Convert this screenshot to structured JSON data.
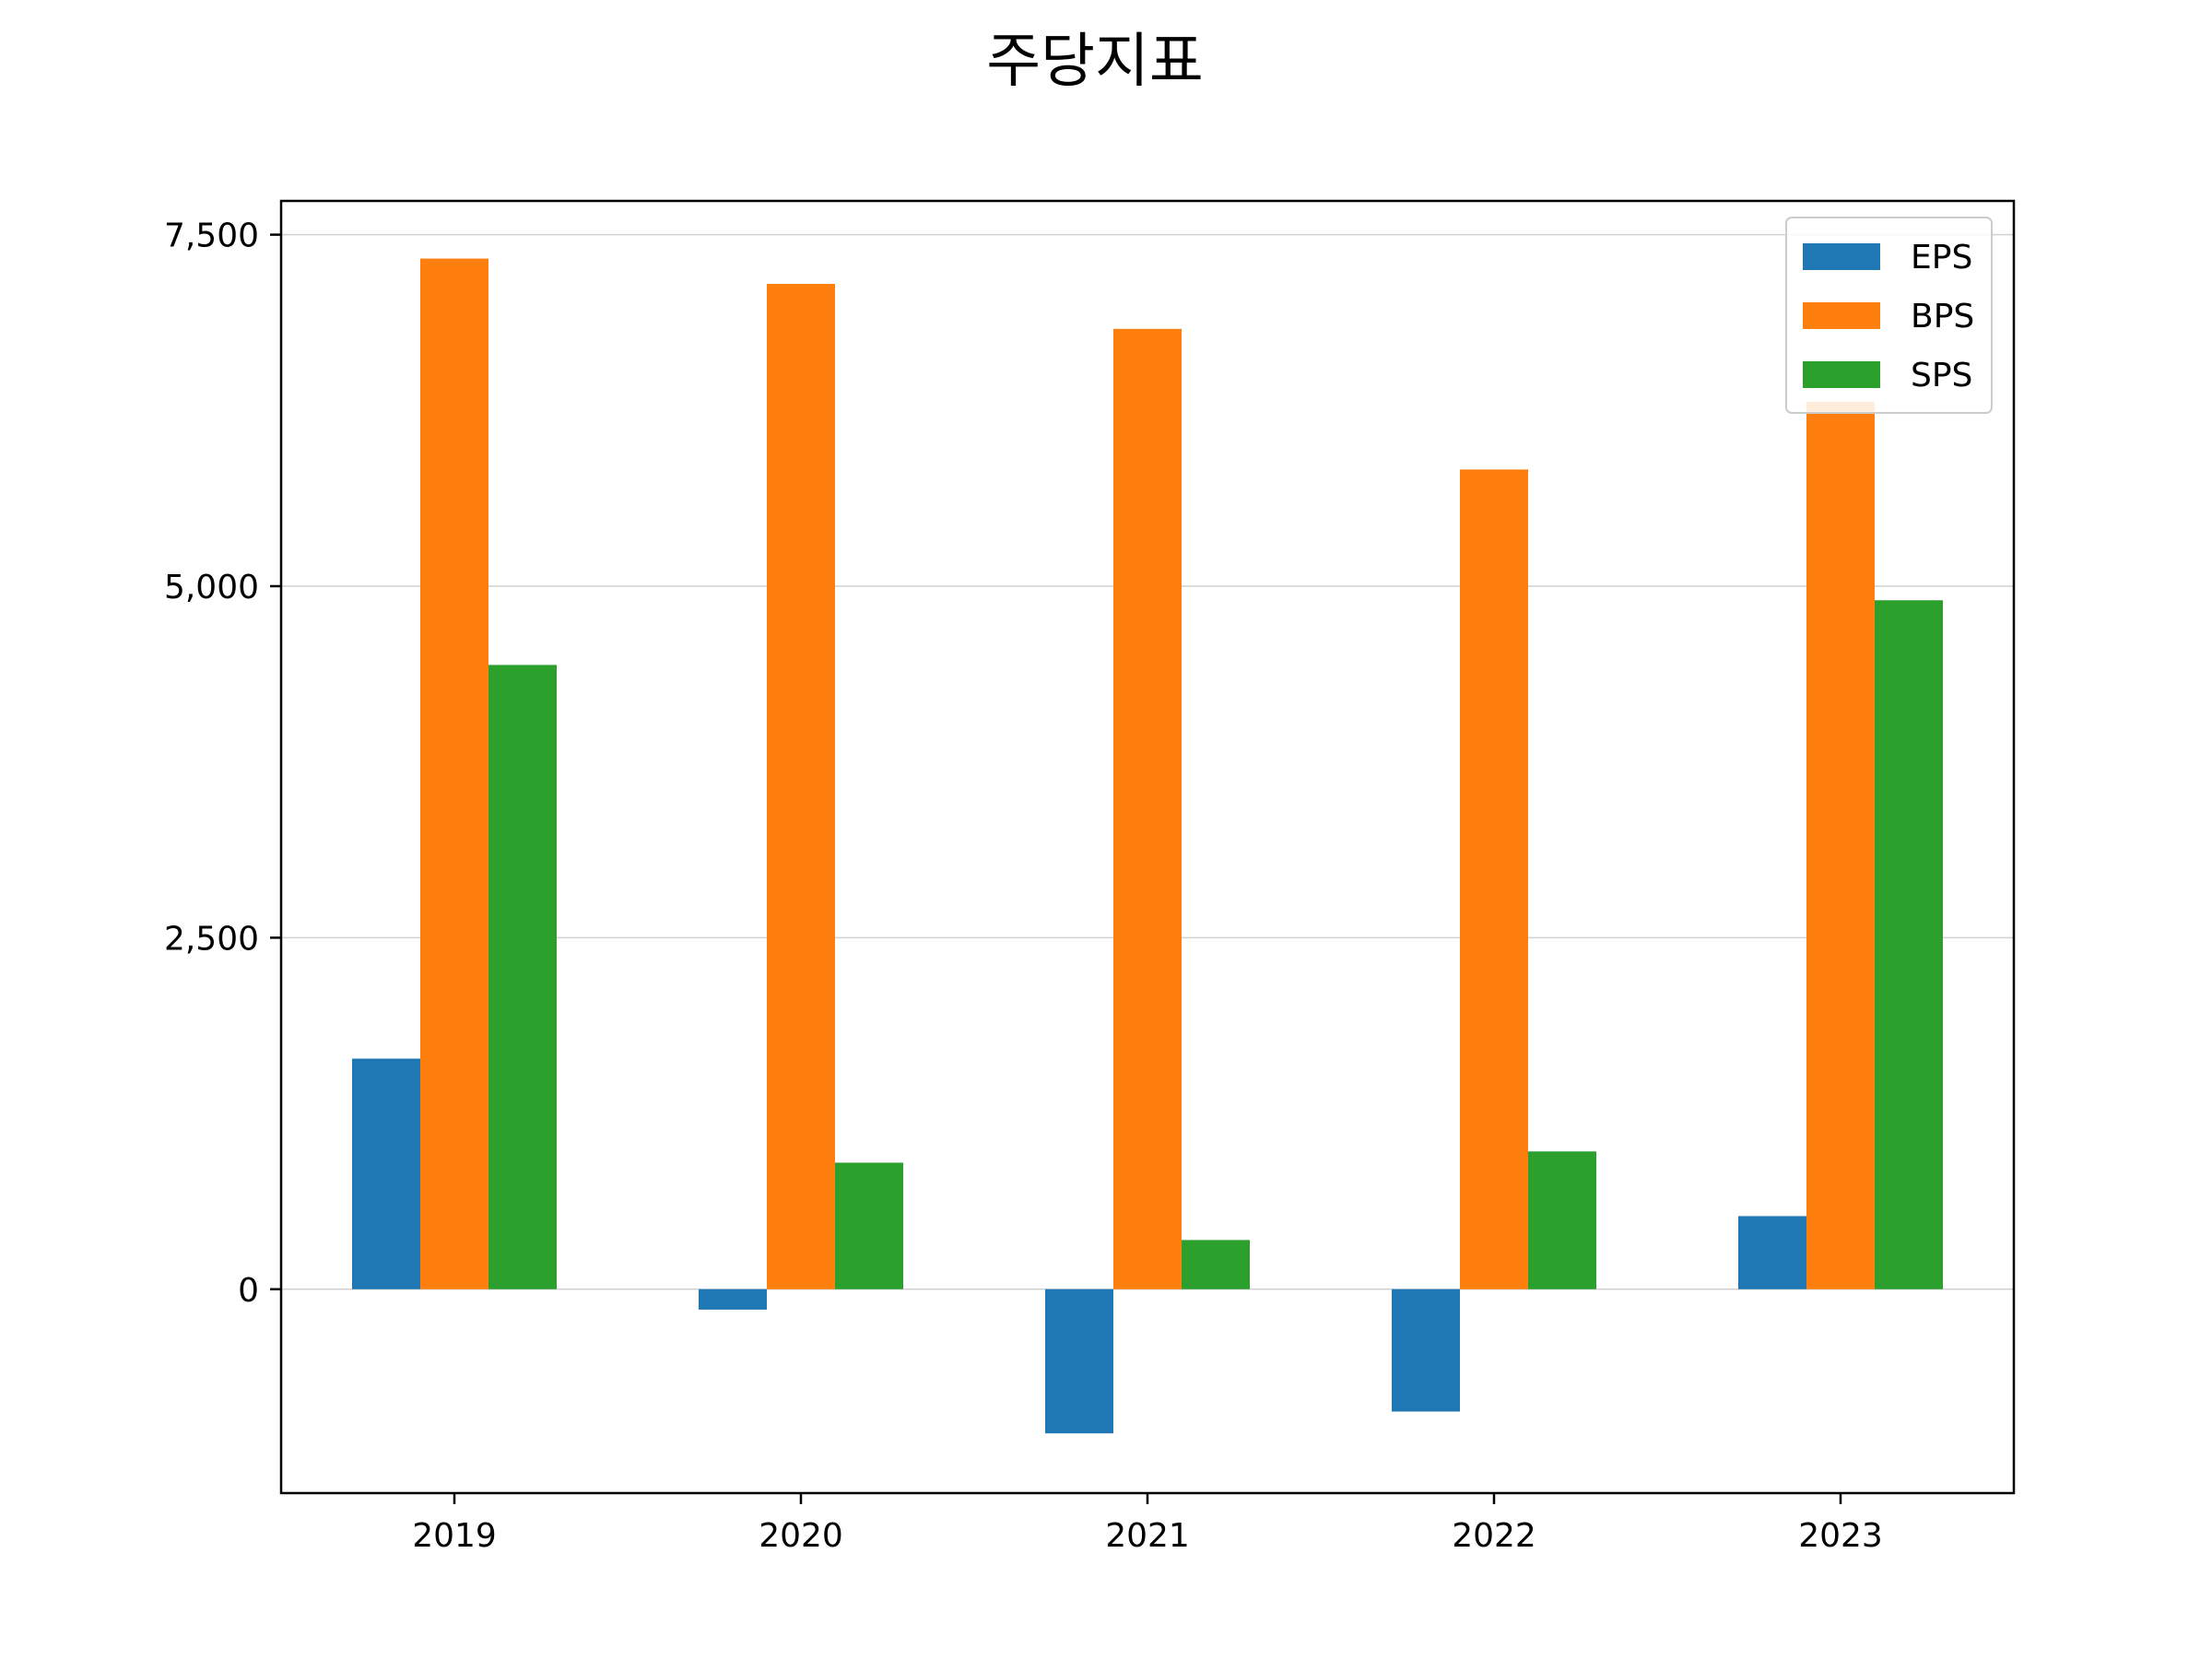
{
  "chart_data": {
    "type": "bar",
    "title": "주당지표",
    "xlabel": "",
    "ylabel": "",
    "categories": [
      "2019",
      "2020",
      "2021",
      "2022",
      "2023"
    ],
    "series": [
      {
        "name": "EPS",
        "color": "#1f77b4",
        "values": [
          1640,
          -145,
          -1025,
          -870,
          520
        ]
      },
      {
        "name": "BPS",
        "color": "#ff7f0e",
        "values": [
          7330,
          7150,
          6830,
          5830,
          6310
        ]
      },
      {
        "name": "SPS",
        "color": "#2ca02c",
        "values": [
          4440,
          900,
          350,
          980,
          4900
        ]
      }
    ],
    "ylim": [
      -1450,
      7740
    ],
    "yticks": [
      0,
      2500,
      5000,
      7500
    ],
    "ytick_labels": [
      "0",
      "2,500",
      "5,000",
      "7,500"
    ],
    "grid": {
      "y": true,
      "x": false
    },
    "legend_position": "top-right"
  }
}
